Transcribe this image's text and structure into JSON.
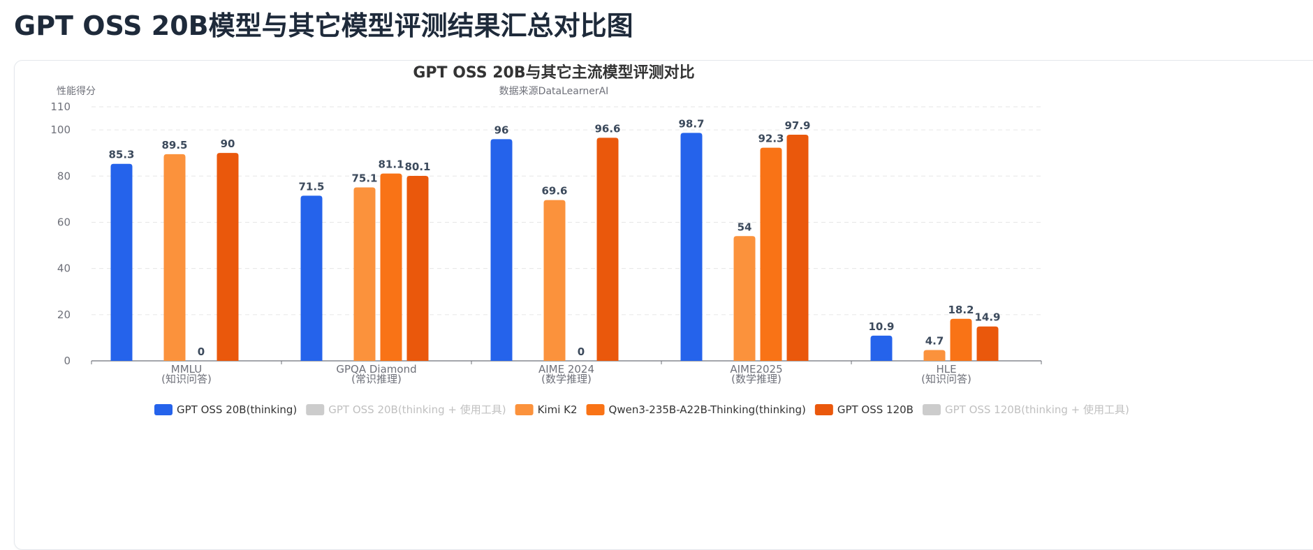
{
  "page": {
    "heading": "GPT OSS 20B模型与其它模型评测结果汇总对比图"
  },
  "chart_data": {
    "type": "bar",
    "title": "GPT OSS 20B与其它主流模型评测对比",
    "subtitle": "数据来源DataLearnerAI",
    "ylabel": "性能得分",
    "xlabel": "",
    "ylim": [
      0,
      110
    ],
    "yticks": [
      0,
      20,
      40,
      60,
      80,
      100,
      110
    ],
    "grid": true,
    "legend_position": "bottom",
    "categories": [
      {
        "name": "MMLU",
        "sub": "(知识问答)"
      },
      {
        "name": "GPQA Diamond",
        "sub": "(常识推理)"
      },
      {
        "name": "AIME 2024",
        "sub": "(数学推理)"
      },
      {
        "name": "AIME2025",
        "sub": "(数学推理)"
      },
      {
        "name": "HLE",
        "sub": "(知识问答)"
      }
    ],
    "series": [
      {
        "name": "GPT OSS 20B(thinking)",
        "color": "#2563eb",
        "visible": true,
        "values": [
          85.3,
          71.5,
          96,
          98.7,
          10.9
        ]
      },
      {
        "name": "GPT OSS 20B(thinking + 使用工具)",
        "color": "#c8c8c8",
        "visible": false,
        "values": [
          null,
          null,
          null,
          null,
          null
        ]
      },
      {
        "name": "Kimi K2",
        "color": "#fb923c",
        "visible": true,
        "values": [
          89.5,
          75.1,
          69.6,
          54,
          4.7
        ]
      },
      {
        "name": "Qwen3-235B-A22B-Thinking(thinking)",
        "color": "#f97316",
        "visible": true,
        "values": [
          0,
          81.1,
          0,
          92.3,
          18.2
        ]
      },
      {
        "name": "GPT OSS 120B",
        "color": "#ea580c",
        "visible": true,
        "values": [
          90,
          80.1,
          96.6,
          97.9,
          14.9
        ]
      },
      {
        "name": "GPT OSS 120B(thinking + 使用工具)",
        "color": "#c8c8c8",
        "visible": false,
        "values": [
          null,
          null,
          null,
          null,
          null
        ]
      }
    ]
  }
}
